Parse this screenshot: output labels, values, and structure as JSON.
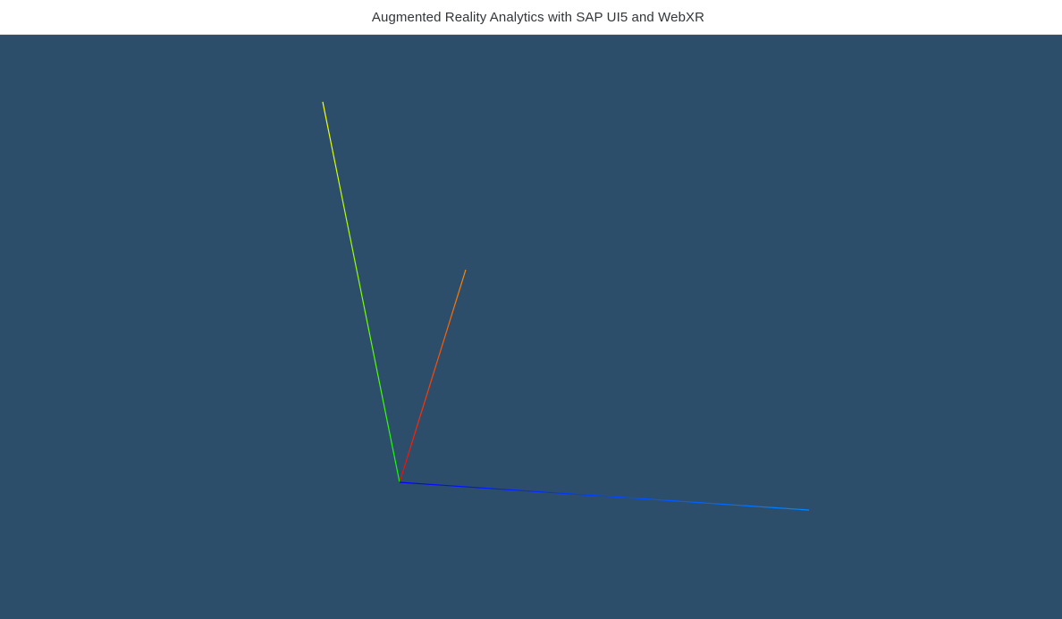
{
  "header": {
    "title": "Augmented Reality Analytics with SAP UI5 and WebXR"
  },
  "scene": {
    "background_color": "#2d4e6b",
    "axes": [
      {
        "name": "y-axis",
        "color_start": "#00ff00",
        "color_end": "#ffff00"
      },
      {
        "name": "x-axis",
        "color_start": "#ff0000",
        "color_end": "#ff8800"
      },
      {
        "name": "z-axis",
        "color_start": "#0000ff",
        "color_end": "#0088ff"
      }
    ]
  }
}
